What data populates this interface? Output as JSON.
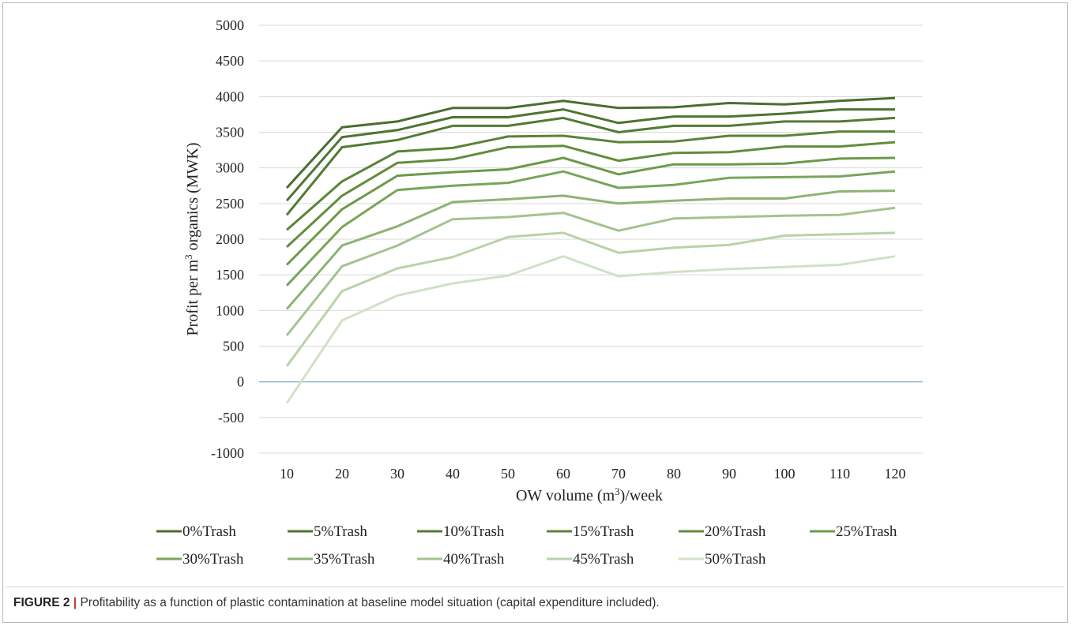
{
  "figure": {
    "label": "FIGURE 2",
    "separator": "|",
    "caption": "Profitability as a function of plastic contamination at baseline model situation (capital expenditure included)."
  },
  "chart_data": {
    "type": "line",
    "xlabel_parts": [
      "OW volume (m",
      "3",
      ")/week"
    ],
    "ylabel_parts": [
      "Profit per m",
      "3",
      " organics  (MWK)"
    ],
    "categories": [
      10,
      20,
      30,
      40,
      50,
      60,
      70,
      80,
      90,
      100,
      110,
      120
    ],
    "y_ticks": [
      "5000",
      "4500",
      "4000",
      "3500",
      "3000",
      "2500",
      "2000",
      "1500",
      "1000",
      "500",
      "0",
      "-500",
      "-1000"
    ],
    "ylim": [
      -1000,
      5000
    ],
    "grid": true,
    "zero_line_color": "#8fb6d9",
    "legend_position": "bottom",
    "series": [
      {
        "name": "0%Trash",
        "color": "#4a6e2f",
        "values": [
          2720,
          3570,
          3650,
          3840,
          3840,
          3940,
          3840,
          3850,
          3910,
          3890,
          3940,
          3980
        ]
      },
      {
        "name": "5%Trash",
        "color": "#4d7431",
        "values": [
          2540,
          3430,
          3530,
          3710,
          3710,
          3820,
          3630,
          3720,
          3720,
          3760,
          3820,
          3820
        ]
      },
      {
        "name": "10%Trash",
        "color": "#527b33",
        "values": [
          2340,
          3290,
          3390,
          3590,
          3590,
          3700,
          3500,
          3590,
          3590,
          3650,
          3650,
          3700
        ]
      },
      {
        "name": "15%Trash",
        "color": "#5a8437",
        "values": [
          2130,
          2810,
          3230,
          3280,
          3440,
          3450,
          3360,
          3370,
          3450,
          3450,
          3510,
          3510
        ]
      },
      {
        "name": "20%Trash",
        "color": "#628d3d",
        "values": [
          1890,
          2610,
          3070,
          3120,
          3290,
          3310,
          3100,
          3210,
          3220,
          3300,
          3300,
          3360
        ]
      },
      {
        "name": "25%Trash",
        "color": "#6c9a48",
        "values": [
          1640,
          2420,
          2890,
          2940,
          2980,
          3140,
          2910,
          3050,
          3050,
          3060,
          3130,
          3140
        ]
      },
      {
        "name": "30%Trash",
        "color": "#79a55a",
        "values": [
          1350,
          2170,
          2690,
          2750,
          2790,
          2950,
          2720,
          2760,
          2860,
          2870,
          2880,
          2950
        ]
      },
      {
        "name": "35%Trash",
        "color": "#8db374",
        "values": [
          1020,
          1910,
          2180,
          2520,
          2560,
          2610,
          2500,
          2540,
          2570,
          2570,
          2670,
          2680
        ]
      },
      {
        "name": "40%Trash",
        "color": "#a3c38f",
        "values": [
          650,
          1620,
          1910,
          2280,
          2310,
          2370,
          2120,
          2290,
          2310,
          2330,
          2340,
          2440
        ]
      },
      {
        "name": "45%Trash",
        "color": "#b9d2a9",
        "values": [
          220,
          1270,
          1590,
          1750,
          2030,
          2090,
          1810,
          1880,
          1920,
          2050,
          2070,
          2090
        ]
      },
      {
        "name": "50%Trash",
        "color": "#d0e1c6",
        "values": [
          -300,
          860,
          1210,
          1380,
          1490,
          1760,
          1480,
          1540,
          1580,
          1610,
          1640,
          1760
        ]
      }
    ]
  }
}
